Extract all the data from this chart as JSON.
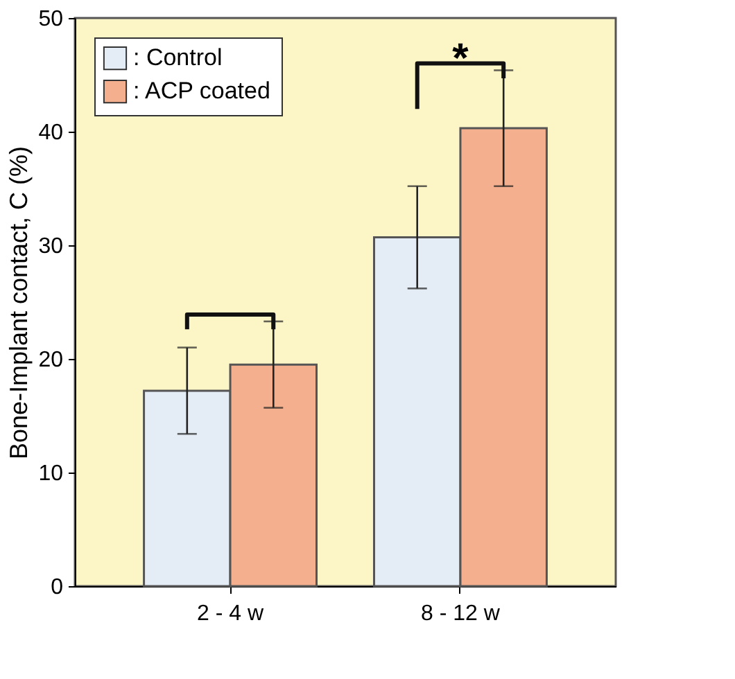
{
  "chart_data": {
    "type": "bar",
    "ylabel": "Bone-Implant contact, C (%)",
    "categories": [
      "2 - 4 w",
      "8 - 12 w"
    ],
    "series": [
      {
        "name": ": Control",
        "color": "#e4edf5",
        "values": [
          17.2,
          30.7
        ],
        "errors": [
          3.8,
          4.5
        ]
      },
      {
        "name": ": ACP coated",
        "color": "#f4b08e",
        "values": [
          19.5,
          40.3
        ],
        "errors": [
          3.8,
          5.1
        ]
      }
    ],
    "ylim": [
      0,
      50
    ],
    "yticks": [
      0,
      10,
      20,
      30,
      40,
      50
    ],
    "grid": false,
    "legend": "top left",
    "annotations": [
      "*"
    ]
  }
}
